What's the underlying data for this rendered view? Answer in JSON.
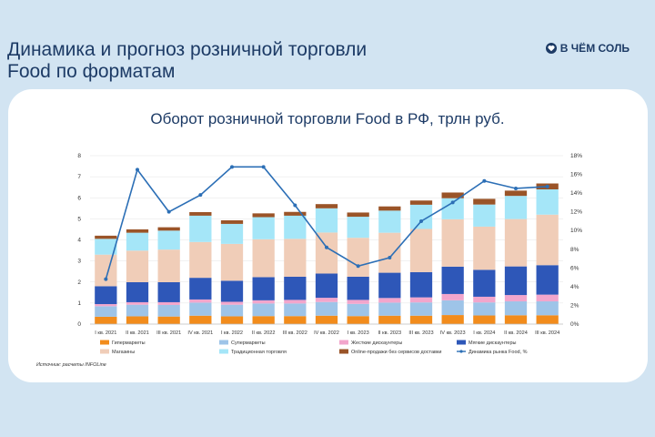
{
  "slide": {
    "title_line1": "Динамика и прогноз розничной торговли",
    "title_line2": "Food по форматам",
    "brand": "В ЧЁМ СОЛЬ"
  },
  "colors": {
    "background": "#d2e4f2",
    "card": "#ffffff",
    "title": "#1d3b66",
    "Гипермаркеты": "#f28c1c",
    "Супермаркеты": "#9ec4e8",
    "Жесткие дискаунтеры": "#f2a6cc",
    "Мягкие дискаунтеры": "#2e57b8",
    "Магазины": "#f0cdb8",
    "Традиционная торговля": "#a5e6f8",
    "Online-продажи без сервисов доставки": "#9a5428",
    "Динамика рынка Food, %": "#2c6fb6"
  },
  "chart_data": {
    "type": "bar",
    "stacked": true,
    "title": "Оборот розничной торговли Food в РФ, трлн руб.",
    "categories": [
      "I кв. 2021",
      "II кв. 2021",
      "III кв. 2021",
      "IV кв. 2021",
      "I кв. 2022",
      "II кв. 2022",
      "III кв. 2022",
      "IV кв. 2022",
      "I кв. 2023",
      "II кв. 2023",
      "III кв. 2023",
      "IV кв. 2023",
      "I кв. 2024",
      "II кв. 2024",
      "III кв. 2024"
    ],
    "ylim": [
      0,
      8
    ],
    "yticks": [
      "0",
      "1",
      "2",
      "3",
      "4",
      "5",
      "6",
      "7",
      "8"
    ],
    "y2lim": [
      0,
      18
    ],
    "y2ticks": [
      "0%",
      "2%",
      "4%",
      "6%",
      "8%",
      "10%",
      "12%",
      "14%",
      "16%",
      "18%"
    ],
    "series": [
      {
        "name": "Гипермаркеты",
        "values": [
          0.35,
          0.37,
          0.36,
          0.4,
          0.37,
          0.38,
          0.38,
          0.4,
          0.38,
          0.4,
          0.4,
          0.43,
          0.41,
          0.42,
          0.42
        ]
      },
      {
        "name": "Супермаркеты",
        "values": [
          0.5,
          0.55,
          0.55,
          0.62,
          0.55,
          0.6,
          0.6,
          0.65,
          0.58,
          0.62,
          0.63,
          0.7,
          0.62,
          0.66,
          0.66
        ]
      },
      {
        "name": "Жесткие дискаунтеры",
        "values": [
          0.1,
          0.12,
          0.13,
          0.15,
          0.14,
          0.15,
          0.17,
          0.2,
          0.19,
          0.22,
          0.24,
          0.3,
          0.27,
          0.3,
          0.32
        ]
      },
      {
        "name": "Мягкие дискаунтеры",
        "values": [
          0.85,
          0.95,
          0.95,
          1.03,
          1.0,
          1.1,
          1.1,
          1.15,
          1.1,
          1.2,
          1.2,
          1.3,
          1.28,
          1.36,
          1.4
        ]
      },
      {
        "name": "Магазины",
        "values": [
          1.5,
          1.5,
          1.55,
          1.7,
          1.75,
          1.8,
          1.8,
          1.95,
          1.85,
          1.9,
          2.05,
          2.25,
          2.05,
          2.25,
          2.4
        ]
      },
      {
        "name": "Традиционная торговля",
        "values": [
          0.75,
          0.85,
          0.9,
          1.25,
          0.95,
          1.05,
          1.1,
          1.15,
          1.0,
          1.05,
          1.15,
          1.0,
          1.05,
          1.1,
          1.2
        ]
      },
      {
        "name": "Online-продажи без сервисов доставки",
        "values": [
          0.15,
          0.16,
          0.16,
          0.17,
          0.17,
          0.18,
          0.18,
          0.2,
          0.2,
          0.2,
          0.2,
          0.27,
          0.27,
          0.25,
          0.28
        ]
      }
    ],
    "line": {
      "name": "Динамика рынка Food, %",
      "axis": "right",
      "values": [
        4.8,
        16.5,
        12.0,
        13.8,
        16.8,
        16.8,
        12.7,
        8.2,
        6.2,
        7.1,
        11.0,
        13.0,
        15.3,
        14.5,
        14.7
      ]
    },
    "legend": {
      "placement": "bottom",
      "items": [
        "Гипермаркеты",
        "Супермаркеты",
        "Жесткие дискаунтеры",
        "Мягкие дискаунтеры",
        "Магазины",
        "Традиционная торговля",
        "Online-продажи без сервисов доставки",
        "Динамика рынка Food, %"
      ]
    },
    "source": "Источник: расчеты INFOLine"
  }
}
